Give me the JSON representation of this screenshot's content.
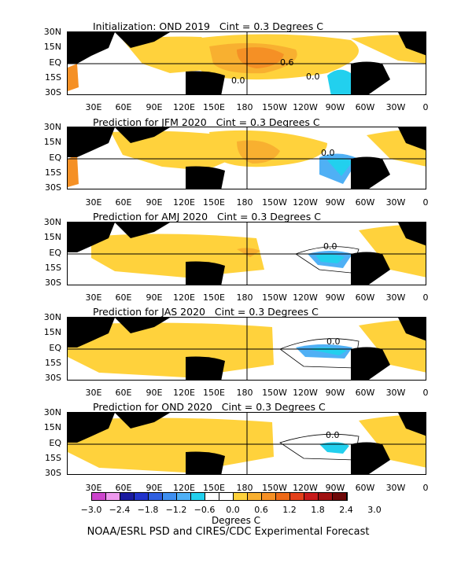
{
  "panels": [
    {
      "title": "Initialization: OND 2019   Cint = 0.3 Degrees C",
      "contour_labels": [
        "0.6",
        "0.0",
        "0.0"
      ]
    },
    {
      "title": "Prediction for JFM 2020   Cint = 0.3 Degrees C",
      "contour_labels": [
        "0.0"
      ]
    },
    {
      "title": "Prediction for AMJ 2020   Cint = 0.3 Degrees C",
      "contour_labels": [
        "0.0"
      ]
    },
    {
      "title": "Prediction for JAS 2020   Cint = 0.3 Degrees C",
      "contour_labels": [
        "0.0"
      ]
    },
    {
      "title": "Prediction for OND 2020   Cint = 0.3 Degrees C",
      "contour_labels": [
        "0.0"
      ]
    }
  ],
  "lat_labels": [
    "30N",
    "15N",
    "EQ",
    "15S",
    "30S"
  ],
  "lon_labels": [
    "30E",
    "60E",
    "90E",
    "120E",
    "150E",
    "180",
    "150W",
    "120W",
    "90W",
    "60W",
    "30W",
    "0"
  ],
  "colorbar": {
    "labels": [
      "−3.0",
      "−2.4",
      "−1.8",
      "−1.2",
      "−0.6",
      "0.0",
      "0.6",
      "1.2",
      "1.8",
      "2.4",
      "3.0"
    ],
    "colors": [
      "#cc44cc",
      "#ee99ee",
      "#1a1aa0",
      "#2233cc",
      "#2f5fe0",
      "#3f8ff0",
      "#4fb0f5",
      "#22d0ee",
      "#ffffff",
      "#ffffff",
      "#ffd23c",
      "#f8b030",
      "#f59025",
      "#ee6a18",
      "#e4401a",
      "#c81a1a",
      "#a01010",
      "#6e0808"
    ],
    "title": "Degrees C"
  },
  "credit": "NOAA/ESRL PSD and CIRES/CDC Experimental Forecast",
  "colors": {
    "land": "#000000",
    "warm": "#ffd23c",
    "warm2": "#f8b030",
    "warm3": "#f59025",
    "cool": "#22d0ee",
    "cool2": "#4fb0f5"
  }
}
